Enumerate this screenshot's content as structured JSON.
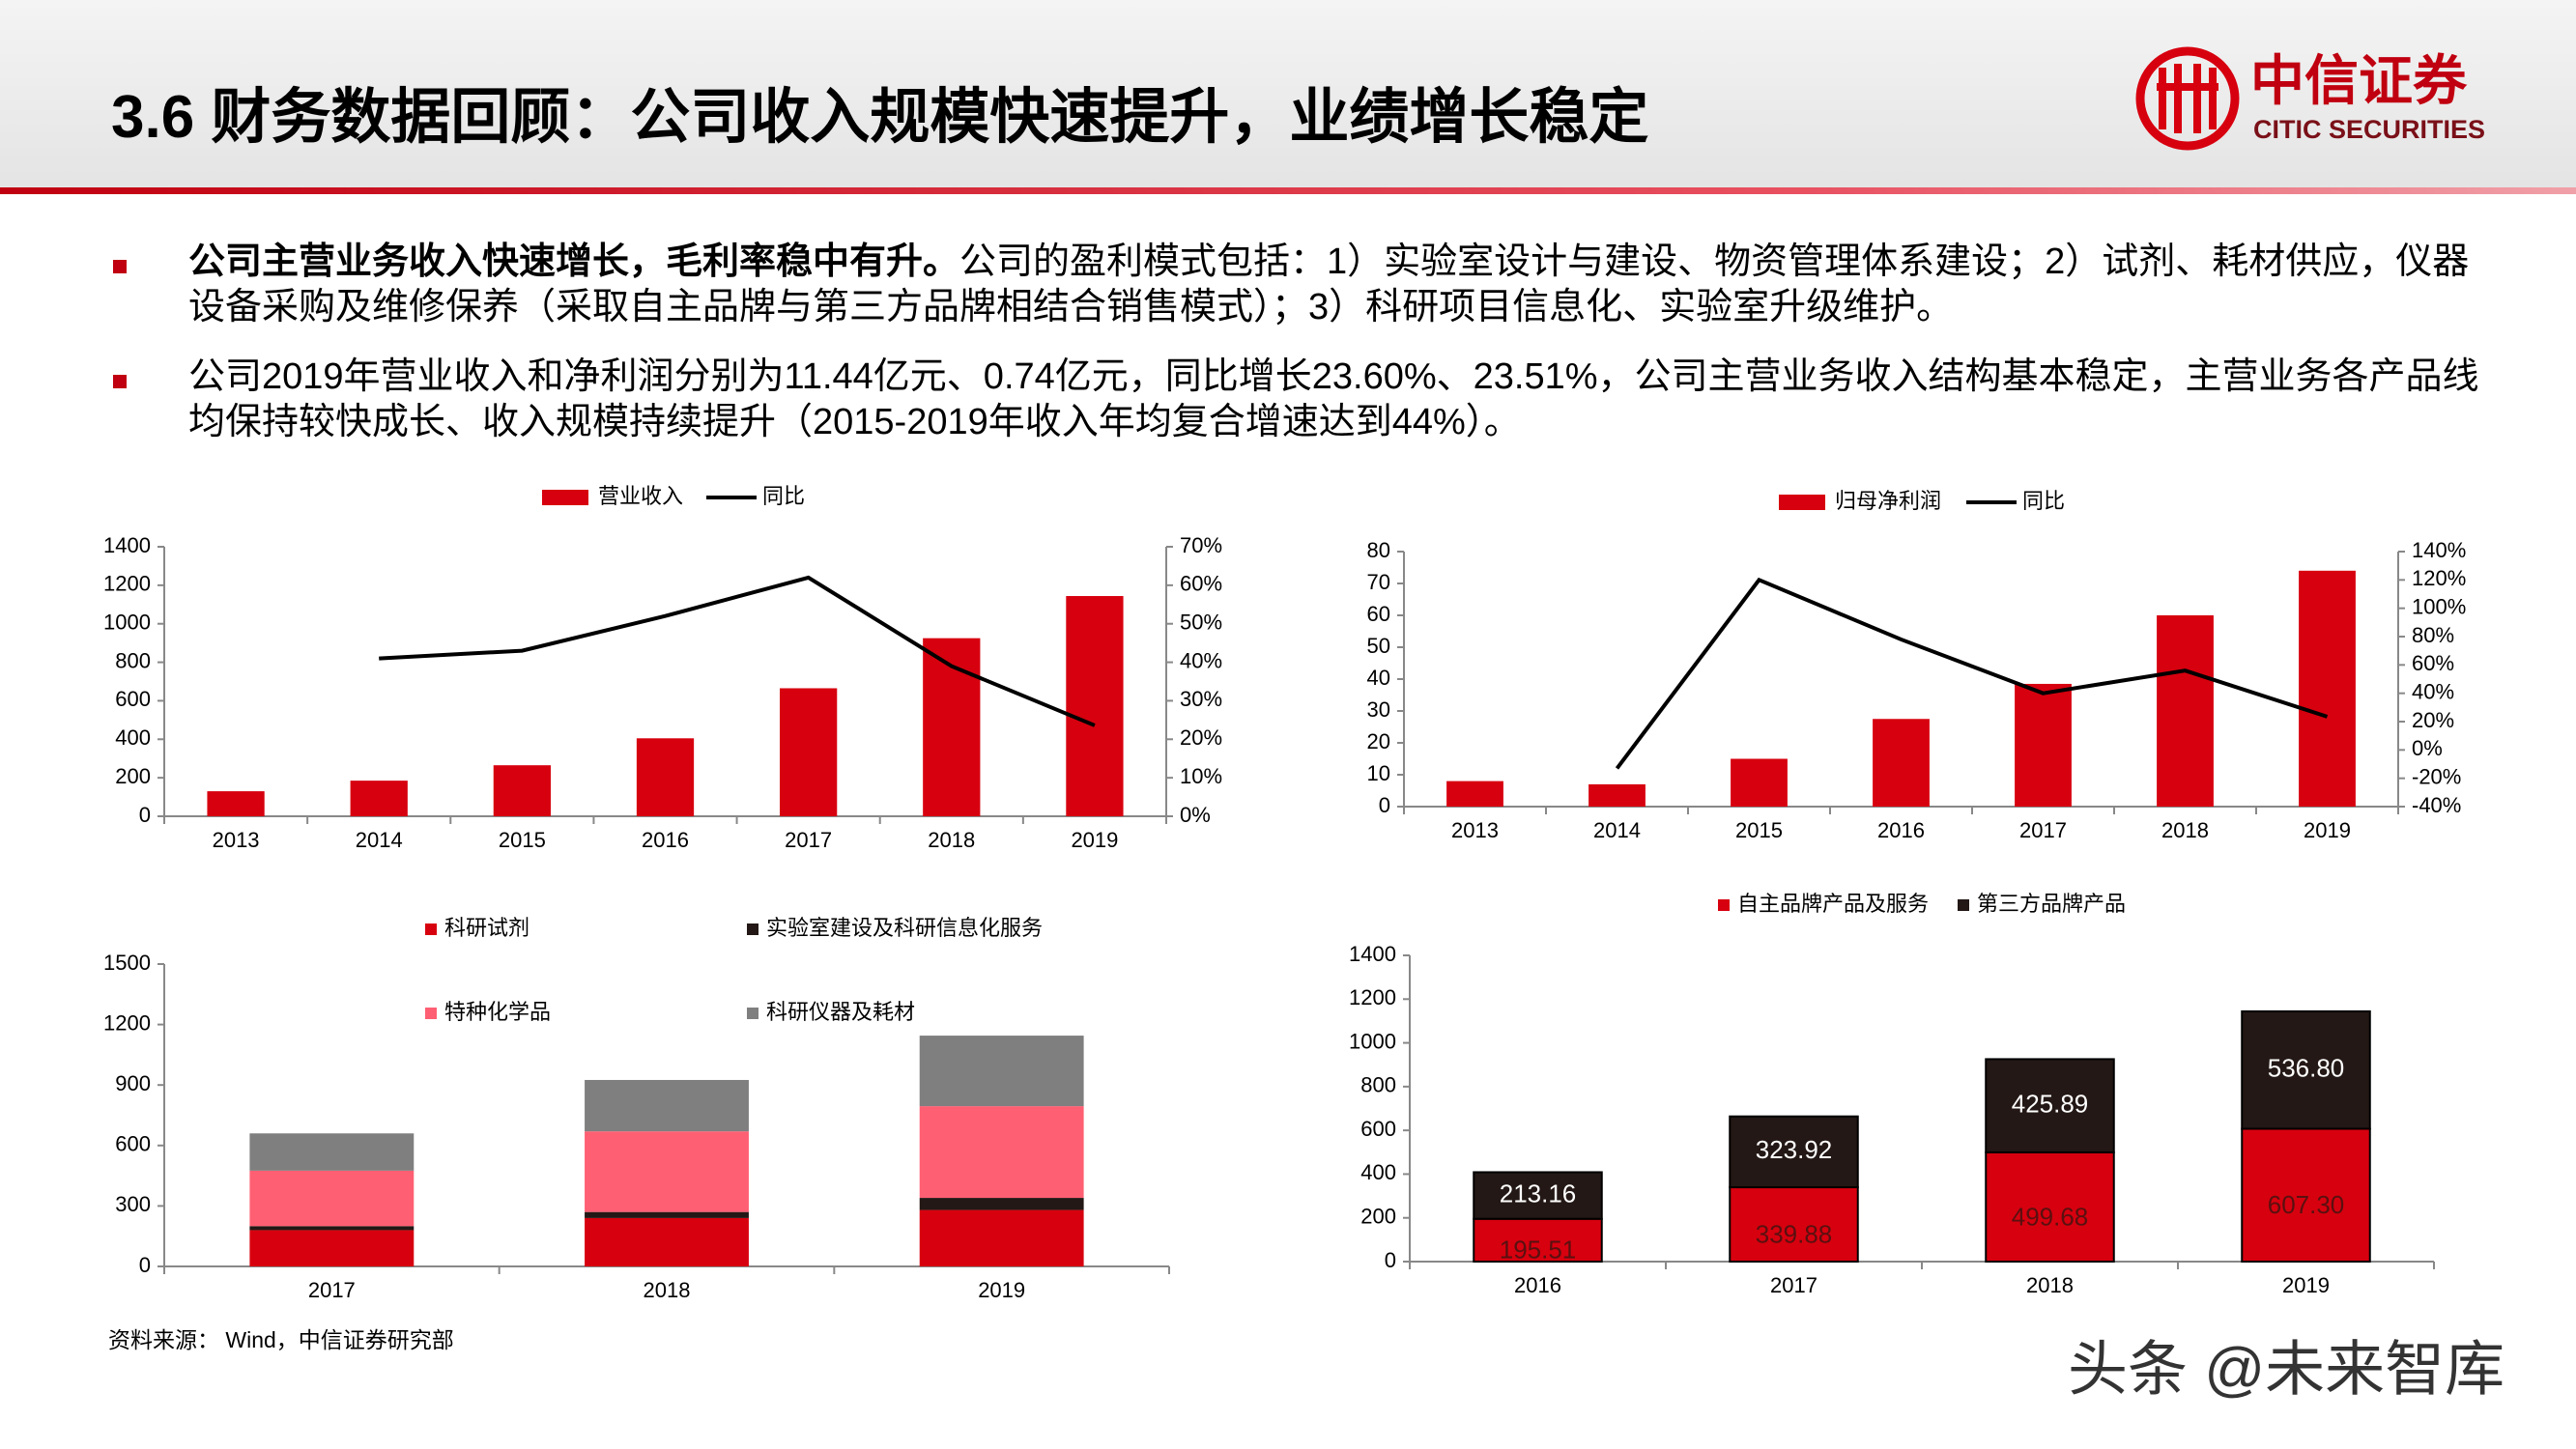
{
  "header": {
    "title": "3.6  财务数据回顾：公司收入规模快速提升，业绩增长稳定",
    "logo_cn": "中信证券",
    "logo_en": "CITIC SECURITIES"
  },
  "bullets": [
    {
      "bold": "公司主营业务收入快速增长，毛利率稳中有升。",
      "text": "公司的盈利模式包括：1）实验室设计与建设、物资管理体系建设；2）试剂、耗材供应，仪器设备采购及维修保养（采取自主品牌与第三方品牌相结合销售模式）；3）科研项目信息化、实验室升级维护。"
    },
    {
      "text": "公司2019年营业收入和净利润分别为11.44亿元、0.74亿元，同比增长23.60%、23.51%，公司主营业务收入结构基本稳定，主营业务各产品线均保持较快成长、收入规模持续提升（2015-2019年收入年均复合增速达到44%）。"
    }
  ],
  "chart_data": [
    {
      "type": "bar",
      "categories": [
        "2013",
        "2014",
        "2015",
        "2016",
        "2017",
        "2018",
        "2019"
      ],
      "series": [
        {
          "name": "营业收入",
          "color": "#d7000f",
          "values": [
            130,
            185,
            265,
            405,
            665,
            925,
            1144
          ]
        },
        {
          "name": "同比",
          "color": "#000000",
          "type": "line",
          "axis": "y2",
          "values": [
            null,
            41,
            43,
            52,
            62,
            39,
            23.6
          ]
        }
      ],
      "ylim": [
        0,
        1400
      ],
      "yticks": [
        0,
        200,
        400,
        600,
        800,
        1000,
        1200,
        1400
      ],
      "y2lim": [
        0,
        70
      ],
      "y2ticks": [
        {
          "value": 0,
          "label": "0%"
        },
        {
          "value": 10,
          "label": "10%"
        },
        {
          "value": 20,
          "label": "20%"
        },
        {
          "value": 30,
          "label": "30%"
        },
        {
          "value": 40,
          "label": "40%"
        },
        {
          "value": 50,
          "label": "50%"
        },
        {
          "value": 60,
          "label": "60%"
        },
        {
          "value": 70,
          "label": "70%"
        }
      ],
      "grid": false,
      "legend": "top"
    },
    {
      "type": "bar",
      "categories": [
        "2013",
        "2014",
        "2015",
        "2016",
        "2017",
        "2018",
        "2019"
      ],
      "series": [
        {
          "name": "归母净利润",
          "color": "#d7000f",
          "values": [
            8,
            7,
            15,
            27.5,
            38.5,
            60,
            74
          ]
        },
        {
          "name": "同比",
          "color": "#000000",
          "type": "line",
          "axis": "y2",
          "values": [
            null,
            -13,
            120,
            78,
            40,
            56,
            23.51
          ]
        }
      ],
      "ylim": [
        0,
        80
      ],
      "yticks": [
        0,
        10,
        20,
        30,
        40,
        50,
        60,
        70,
        80
      ],
      "y2lim": [
        -40,
        140
      ],
      "y2ticks": [
        {
          "value": -40,
          "label": "-40%"
        },
        {
          "value": -20,
          "label": "-20%"
        },
        {
          "value": 0,
          "label": "0%"
        },
        {
          "value": 20,
          "label": "20%"
        },
        {
          "value": 40,
          "label": "40%"
        },
        {
          "value": 60,
          "label": "60%"
        },
        {
          "value": 80,
          "label": "80%"
        },
        {
          "value": 100,
          "label": "100%"
        },
        {
          "value": 120,
          "label": "120%"
        },
        {
          "value": 140,
          "label": "140%"
        }
      ],
      "grid": false,
      "legend": "top"
    },
    {
      "type": "stacked_bar",
      "categories": [
        "2017",
        "2018",
        "2019"
      ],
      "series": [
        {
          "name": "科研试剂",
          "color": "#d7000f",
          "values": [
            180,
            240,
            280
          ]
        },
        {
          "name": "实验室建设及科研信息化服务",
          "color": "#231815",
          "values": [
            20,
            30,
            60
          ]
        },
        {
          "name": "特种化学品",
          "color": "#ff5f73",
          "values": [
            275,
            400,
            455
          ]
        },
        {
          "name": "科研仪器及耗材",
          "color": "#7f7f7f",
          "values": [
            185,
            255,
            350
          ]
        }
      ],
      "ylim": [
        0,
        1500
      ],
      "yticks": [
        0,
        300,
        600,
        900,
        1200,
        1500
      ],
      "grid": false,
      "legend": "top"
    },
    {
      "type": "stacked_bar",
      "categories": [
        "2016",
        "2017",
        "2018",
        "2019"
      ],
      "series": [
        {
          "name": "自主品牌产品及服务",
          "color": "#d7000f",
          "values": [
            195.51,
            339.88,
            499.68,
            607.3
          ],
          "value_labels": [
            "195.51",
            "339.88",
            "499.68",
            "607.30"
          ]
        },
        {
          "name": "第三方品牌产品",
          "color": "#231815",
          "values": [
            213.16,
            323.92,
            425.89,
            536.8
          ],
          "value_labels": [
            "213.16",
            "323.92",
            "425.89",
            "536.80"
          ]
        }
      ],
      "ylim": [
        0,
        1400
      ],
      "yticks": [
        0,
        200,
        400,
        600,
        800,
        1000,
        1200,
        1400
      ],
      "grid": false,
      "legend": "top"
    }
  ],
  "source": "资料来源： Wind，中信证券研究部",
  "watermark": "头条 @未来智库"
}
